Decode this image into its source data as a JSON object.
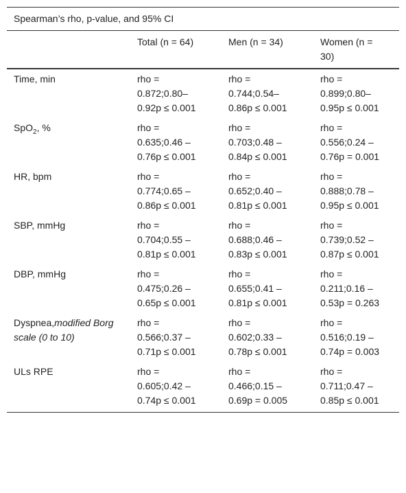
{
  "table": {
    "caption": "Spearman’s rho, p-value, and 95% CI",
    "columns": [
      "Total (n = 64)",
      "Men (n = 34)",
      "Women (n = 30)"
    ],
    "rows": [
      {
        "label": [
          {
            "text": "Time, min"
          }
        ],
        "cells": [
          "rho = 0.872;0.80–0.92p ≤ 0.001",
          "rho = 0.744;0.54–0.86p ≤ 0.001",
          "rho = 0.899;0.80–0.95p ≤ 0.001"
        ]
      },
      {
        "label": [
          {
            "text": "SpO"
          },
          {
            "text": "2",
            "style": "sub"
          },
          {
            "text": ", %"
          }
        ],
        "cells": [
          "rho = 0.635;0.46 – 0.76p ≤ 0.001",
          "rho = 0.703;0.48 – 0.84p ≤ 0.001",
          "rho = 0.556;0.24 – 0.76p = 0.001"
        ]
      },
      {
        "label": [
          {
            "text": "HR, bpm"
          }
        ],
        "cells": [
          "rho = 0.774;0.65 – 0.86p ≤ 0.001",
          "rho = 0.652;0.40 – 0.81p ≤ 0.001",
          "rho = 0.888;0.78 – 0.95p ≤ 0.001"
        ]
      },
      {
        "label": [
          {
            "text": "SBP, mmHg"
          }
        ],
        "cells": [
          "rho = 0.704;0.55 – 0.81p ≤ 0.001",
          "rho = 0.688;0.46 – 0.83p ≤ 0.001",
          "rho = 0.739;0.52 – 0.87p ≤ 0.001"
        ]
      },
      {
        "label": [
          {
            "text": "DBP, mmHg"
          }
        ],
        "cells": [
          "rho = 0.475;0.26 – 0.65p ≤ 0.001",
          "rho = 0.655;0.41 – 0.81p ≤ 0.001",
          "rho = 0.211;0.16 – 0.53p = 0.263"
        ]
      },
      {
        "label": [
          {
            "text": "Dyspnea,"
          },
          {
            "text": "modified Borg scale (0 to 10)",
            "style": "italic"
          }
        ],
        "cells": [
          "rho = 0.566;0.37 – 0.71p ≤ 0.001",
          "rho = 0.602;0.33 – 0.78p ≤ 0.001",
          "rho = 0.516;0.19 – 0.74p = 0.003"
        ]
      },
      {
        "label": [
          {
            "text": "ULs RPE"
          }
        ],
        "cells": [
          "rho = 0.605;0.42 – 0.74p ≤ 0.001",
          "rho = 0.466;0.15 – 0.69p = 0.005",
          "rho = 0.711;0.47 – 0.85p ≤ 0.001"
        ]
      }
    ]
  }
}
